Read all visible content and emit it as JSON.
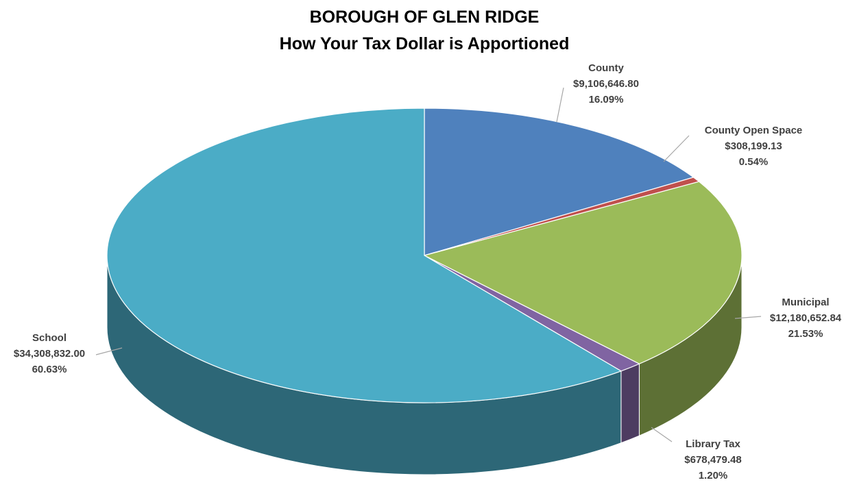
{
  "chart_data": {
    "type": "pie3d",
    "title": "BOROUGH OF GLEN RIDGE",
    "subtitle": "How Your Tax Dollar is Apportioned",
    "categories": [
      "County",
      "County Open Space",
      "Municipal",
      "Library Tax",
      "School"
    ],
    "values": [
      9106646.8,
      308199.13,
      12180652.84,
      678479.48,
      34308832.0
    ],
    "value_labels": [
      "$9,106,646.80",
      "$308,199.13",
      "$12,180,652.84",
      "$678,479.48",
      "$34,308,832.00"
    ],
    "percent_values": [
      16.09,
      0.54,
      21.53,
      1.2,
      60.63
    ],
    "percent_labels": [
      "16.09%",
      "0.54%",
      "21.53%",
      "1.20%",
      "60.63%"
    ],
    "colors": [
      "#4f81bd",
      "#c0504d",
      "#9bbb59",
      "#8064a2",
      "#4bacc6"
    ]
  }
}
